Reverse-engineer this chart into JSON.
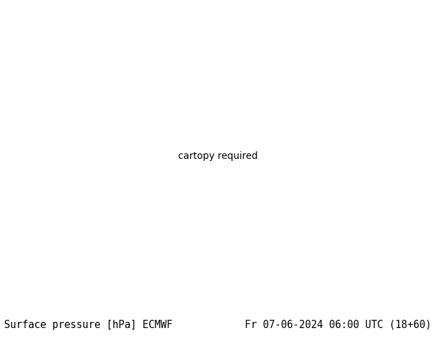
{
  "left_text": "Surface pressure [hPa] ECMWF",
  "right_text": "Fr 07-06-2024 06:00 UTC (18+60)",
  "label_fontsize": 10.5,
  "label_color": "#000000",
  "background_color": "#ffffff",
  "fig_width": 6.34,
  "fig_height": 4.9,
  "dpi": 100,
  "extent": [
    20,
    150,
    0,
    70
  ],
  "label_font": "monospace",
  "contour_blue_color": "#0000cc",
  "contour_black_color": "#000000",
  "contour_red_color": "#cc0000",
  "contour_lw_blue": 0.9,
  "contour_lw_black": 1.3,
  "contour_lw_red": 1.2,
  "label_contour_fontsize": 7,
  "ocean_color": "#b8d4e8",
  "land_color": "#e8dfc0",
  "lake_color": "#b8d4e8",
  "border_color": "#808080",
  "border_lw": 0.3,
  "coastline_color": "#404040",
  "coastline_lw": 0.4
}
